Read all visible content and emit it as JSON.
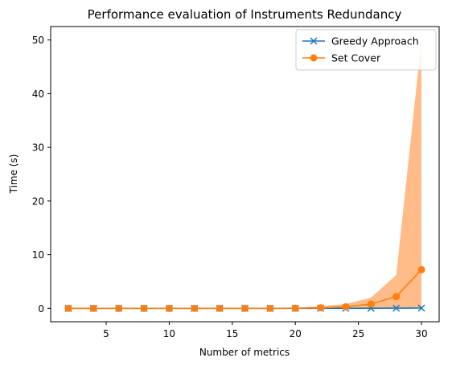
{
  "chart_data": {
    "type": "line",
    "title": "Performance evaluation of Instruments Redundancy",
    "xlabel": "Number of metrics",
    "ylabel": "Time (s)",
    "xlim": [
      0.6,
      31.4
    ],
    "ylim": [
      -2.5,
      52.5
    ],
    "xticks": [
      5,
      10,
      15,
      20,
      25,
      30
    ],
    "yticks": [
      0,
      10,
      20,
      30,
      40,
      50
    ],
    "legend_position": "top-right",
    "grid": false,
    "x": [
      2,
      4,
      6,
      8,
      10,
      12,
      14,
      16,
      18,
      20,
      22,
      24,
      26,
      28,
      30
    ],
    "series": [
      {
        "name": "Greedy Approach",
        "color": "#1f77b4",
        "marker": "x",
        "values": [
          0,
          0,
          0,
          0,
          0,
          0,
          0,
          0,
          0,
          0,
          0.01,
          0.01,
          0.02,
          0.03,
          0.05
        ]
      },
      {
        "name": "Set Cover",
        "color": "#ff7f0e",
        "marker": "circle",
        "values": [
          0,
          0,
          0,
          0,
          0,
          0,
          0,
          0,
          0,
          0.02,
          0.1,
          0.3,
          0.8,
          2.2,
          7.2
        ],
        "band_upper": [
          0,
          0,
          0,
          0,
          0,
          0,
          0,
          0,
          0,
          0.1,
          0.4,
          0.8,
          2.0,
          6.2,
          50.0
        ],
        "band_lower": [
          0,
          0,
          0,
          0,
          0,
          0,
          0,
          0,
          0,
          0,
          0,
          0,
          0,
          0,
          0
        ],
        "band_color": "#ffbb88"
      }
    ]
  }
}
